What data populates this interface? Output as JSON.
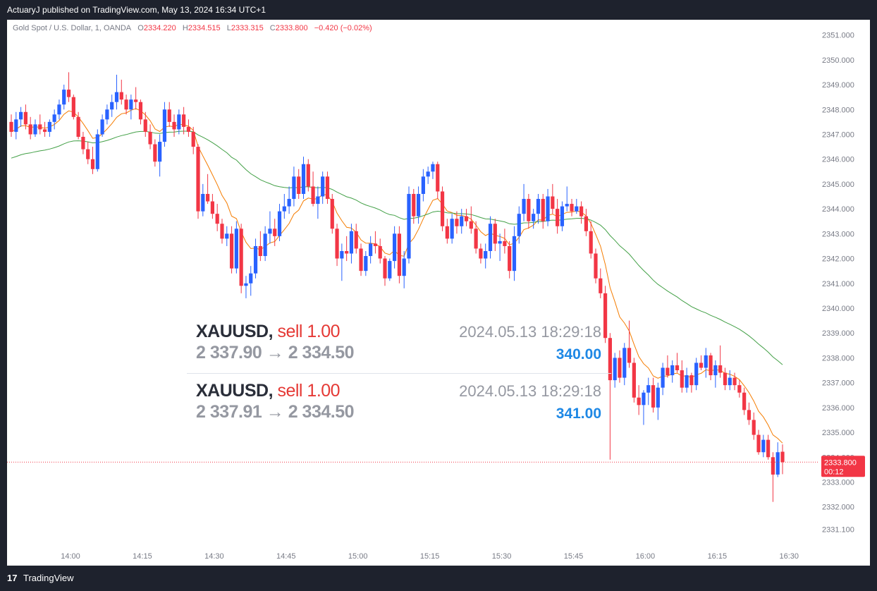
{
  "header": {
    "title": "ActuaryJ published on TradingView.com, May 13, 2024 16:34 UTC+1"
  },
  "legend": {
    "symbol": "Gold Spot / U.S. Dollar, 1, OANDA",
    "o_label": "O",
    "o_value": "2334.220",
    "h_label": "H",
    "h_value": "2334.515",
    "l_label": "L",
    "l_value": "2333.315",
    "c_label": "C",
    "c_value": "2333.800",
    "change": "−0.420 (−0.02%)"
  },
  "trades": [
    {
      "symbol": "XAUUSD,",
      "side": "sell 1.00",
      "prices": "2 337.90 → 2 334.50",
      "time": "2024.05.13 18:29:18",
      "amount": "340.00"
    },
    {
      "symbol": "XAUUSD,",
      "side": "sell 1.00",
      "prices": "2 337.91 → 2 334.50",
      "time": "2024.05.13 18:29:18",
      "amount": "341.00"
    }
  ],
  "footer": {
    "brand": "TradingView",
    "logo_icon": "tradingview-logo-icon"
  },
  "colors": {
    "up": "#2962ff",
    "down": "#f23645",
    "ema_fast": "#f57c00",
    "ema_slow": "#43a047",
    "price_line": "#f23645"
  },
  "chart_data": {
    "type": "candlestick",
    "y_ticks": [
      "2331.100",
      "2332.000",
      "2333.000",
      "2334.000",
      "2335.000",
      "2336.000",
      "2337.000",
      "2338.000",
      "2339.000",
      "2340.000",
      "2341.000",
      "2342.000",
      "2343.000",
      "2344.000",
      "2345.000",
      "2346.000",
      "2347.000",
      "2348.000",
      "2349.000",
      "2350.000",
      "2351.000"
    ],
    "x_ticks": [
      "14:00",
      "14:15",
      "14:30",
      "14:45",
      "15:00",
      "15:15",
      "15:30",
      "15:45",
      "16:00",
      "16:15",
      "16:30"
    ],
    "last_price": "2333.800",
    "countdown": "00:12",
    "ylim": [
      2330.6,
      2351.5
    ],
    "series": [
      {
        "kind": "candles",
        "values": [
          [
            2347.5,
            2347.8,
            2346.9,
            2347.1
          ],
          [
            2347.1,
            2347.9,
            2346.8,
            2347.6
          ],
          [
            2347.6,
            2348.1,
            2347.3,
            2347.9
          ],
          [
            2347.9,
            2348.2,
            2347.2,
            2347.4
          ],
          [
            2347.4,
            2347.7,
            2346.8,
            2347.0
          ],
          [
            2347.0,
            2347.6,
            2346.9,
            2347.4
          ],
          [
            2347.4,
            2347.8,
            2347.0,
            2347.2
          ],
          [
            2347.2,
            2347.5,
            2346.9,
            2347.1
          ],
          [
            2347.1,
            2347.6,
            2346.9,
            2347.5
          ],
          [
            2347.5,
            2348.0,
            2347.2,
            2347.8
          ],
          [
            2347.8,
            2348.4,
            2347.6,
            2348.2
          ],
          [
            2348.2,
            2349.0,
            2348.0,
            2348.8
          ],
          [
            2348.8,
            2349.5,
            2348.3,
            2348.5
          ],
          [
            2348.5,
            2348.6,
            2347.6,
            2347.7
          ],
          [
            2347.7,
            2347.9,
            2346.8,
            2346.9
          ],
          [
            2346.9,
            2347.1,
            2346.2,
            2346.4
          ],
          [
            2346.4,
            2346.7,
            2345.8,
            2346.0
          ],
          [
            2346.0,
            2346.5,
            2345.4,
            2345.6
          ],
          [
            2345.6,
            2347.2,
            2345.5,
            2347.0
          ],
          [
            2347.0,
            2347.8,
            2346.9,
            2347.6
          ],
          [
            2347.6,
            2348.2,
            2347.4,
            2348.0
          ],
          [
            2348.0,
            2348.6,
            2347.7,
            2348.3
          ],
          [
            2348.3,
            2349.4,
            2348.0,
            2348.7
          ],
          [
            2348.7,
            2349.2,
            2348.2,
            2348.4
          ],
          [
            2348.4,
            2348.6,
            2347.8,
            2348.0
          ],
          [
            2348.0,
            2348.6,
            2347.6,
            2348.4
          ],
          [
            2348.4,
            2348.9,
            2348.0,
            2348.3
          ],
          [
            2348.3,
            2348.4,
            2347.4,
            2347.6
          ],
          [
            2347.6,
            2347.9,
            2346.9,
            2347.1
          ],
          [
            2347.1,
            2347.4,
            2346.4,
            2346.6
          ],
          [
            2346.6,
            2346.8,
            2345.7,
            2345.9
          ],
          [
            2345.9,
            2347.0,
            2345.3,
            2346.7
          ],
          [
            2346.7,
            2348.3,
            2346.5,
            2348.0
          ],
          [
            2348.0,
            2348.3,
            2347.3,
            2347.5
          ],
          [
            2347.5,
            2347.8,
            2346.9,
            2347.2
          ],
          [
            2347.2,
            2348.0,
            2347.0,
            2347.8
          ],
          [
            2347.8,
            2348.1,
            2347.0,
            2347.3
          ],
          [
            2347.3,
            2347.6,
            2346.9,
            2347.1
          ],
          [
            2347.1,
            2347.3,
            2346.2,
            2346.5
          ],
          [
            2346.5,
            2346.6,
            2343.6,
            2343.9
          ],
          [
            2343.9,
            2345.0,
            2343.7,
            2344.6
          ],
          [
            2344.6,
            2345.4,
            2344.2,
            2344.3
          ],
          [
            2344.3,
            2344.6,
            2343.6,
            2343.8
          ],
          [
            2343.8,
            2344.2,
            2343.1,
            2343.4
          ],
          [
            2343.4,
            2343.6,
            2342.6,
            2342.8
          ],
          [
            2342.8,
            2343.3,
            2342.5,
            2343.0
          ],
          [
            2343.0,
            2343.3,
            2341.4,
            2341.6
          ],
          [
            2341.6,
            2343.5,
            2341.4,
            2343.2
          ],
          [
            2343.2,
            2343.4,
            2340.6,
            2340.9
          ],
          [
            2340.9,
            2341.3,
            2340.4,
            2341.0
          ],
          [
            2341.0,
            2341.7,
            2340.5,
            2341.4
          ],
          [
            2341.4,
            2342.8,
            2341.2,
            2342.5
          ],
          [
            2342.5,
            2343.1,
            2341.9,
            2342.1
          ],
          [
            2342.1,
            2343.3,
            2341.9,
            2343.0
          ],
          [
            2343.0,
            2343.9,
            2342.6,
            2343.2
          ],
          [
            2343.2,
            2343.6,
            2342.5,
            2342.9
          ],
          [
            2342.9,
            2344.2,
            2342.7,
            2343.9
          ],
          [
            2343.9,
            2344.6,
            2343.6,
            2344.1
          ],
          [
            2344.1,
            2344.9,
            2343.8,
            2344.4
          ],
          [
            2344.4,
            2345.7,
            2344.1,
            2345.3
          ],
          [
            2345.3,
            2345.6,
            2344.4,
            2344.6
          ],
          [
            2344.6,
            2346.1,
            2344.4,
            2345.8
          ],
          [
            2345.8,
            2346.0,
            2344.7,
            2344.9
          ],
          [
            2344.9,
            2345.5,
            2344.1,
            2344.2
          ],
          [
            2344.2,
            2344.9,
            2343.6,
            2344.5
          ],
          [
            2344.5,
            2345.5,
            2344.2,
            2345.3
          ],
          [
            2345.3,
            2345.5,
            2344.2,
            2344.4
          ],
          [
            2344.4,
            2344.6,
            2343.0,
            2343.2
          ],
          [
            2343.2,
            2343.4,
            2341.7,
            2342.0
          ],
          [
            2342.0,
            2342.6,
            2341.1,
            2342.3
          ],
          [
            2342.3,
            2342.9,
            2341.9,
            2342.2
          ],
          [
            2342.2,
            2343.4,
            2341.8,
            2343.1
          ],
          [
            2343.1,
            2343.4,
            2342.2,
            2342.4
          ],
          [
            2342.4,
            2342.6,
            2341.3,
            2341.5
          ],
          [
            2341.5,
            2342.3,
            2341.3,
            2342.1
          ],
          [
            2342.1,
            2342.9,
            2341.8,
            2342.6
          ],
          [
            2342.6,
            2343.1,
            2342.2,
            2342.5
          ],
          [
            2342.5,
            2342.8,
            2341.8,
            2342.0
          ],
          [
            2342.0,
            2342.1,
            2340.9,
            2341.2
          ],
          [
            2341.2,
            2342.0,
            2341.1,
            2341.9
          ],
          [
            2341.9,
            2343.3,
            2341.6,
            2343.0
          ],
          [
            2343.0,
            2343.3,
            2341.0,
            2341.3
          ],
          [
            2341.3,
            2342.3,
            2340.8,
            2342.0
          ],
          [
            2342.0,
            2344.9,
            2341.8,
            2344.6
          ],
          [
            2344.6,
            2344.8,
            2343.4,
            2343.7
          ],
          [
            2343.7,
            2344.9,
            2343.4,
            2344.6
          ],
          [
            2344.6,
            2345.6,
            2344.3,
            2345.3
          ],
          [
            2345.3,
            2345.7,
            2345.0,
            2345.5
          ],
          [
            2345.5,
            2345.9,
            2345.2,
            2345.8
          ],
          [
            2345.8,
            2345.9,
            2344.4,
            2344.7
          ],
          [
            2344.7,
            2344.9,
            2343.1,
            2343.3
          ],
          [
            2343.3,
            2343.6,
            2342.6,
            2342.8
          ],
          [
            2342.8,
            2343.8,
            2342.6,
            2343.6
          ],
          [
            2343.6,
            2343.9,
            2343.0,
            2343.3
          ],
          [
            2343.3,
            2344.0,
            2343.0,
            2343.7
          ],
          [
            2343.7,
            2344.0,
            2343.3,
            2343.5
          ],
          [
            2343.5,
            2344.1,
            2343.0,
            2343.2
          ],
          [
            2343.2,
            2343.5,
            2342.2,
            2342.4
          ],
          [
            2342.4,
            2342.6,
            2341.8,
            2342.0
          ],
          [
            2342.0,
            2342.6,
            2341.6,
            2342.3
          ],
          [
            2342.3,
            2343.7,
            2342.0,
            2343.4
          ],
          [
            2343.4,
            2343.6,
            2342.3,
            2342.6
          ],
          [
            2342.6,
            2343.0,
            2341.9,
            2342.7
          ],
          [
            2342.7,
            2343.2,
            2342.2,
            2342.5
          ],
          [
            2342.5,
            2342.7,
            2341.2,
            2341.5
          ],
          [
            2341.5,
            2343.3,
            2341.1,
            2342.9
          ],
          [
            2342.9,
            2344.1,
            2342.6,
            2343.8
          ],
          [
            2343.8,
            2345.0,
            2343.5,
            2344.4
          ],
          [
            2344.4,
            2344.6,
            2343.2,
            2343.5
          ],
          [
            2343.5,
            2344.0,
            2343.2,
            2343.8
          ],
          [
            2343.8,
            2344.6,
            2343.4,
            2344.4
          ],
          [
            2344.4,
            2344.6,
            2343.2,
            2343.5
          ],
          [
            2343.5,
            2344.8,
            2343.3,
            2344.5
          ],
          [
            2344.5,
            2345.0,
            2343.8,
            2344.0
          ],
          [
            2344.0,
            2344.4,
            2343.0,
            2343.3
          ],
          [
            2343.3,
            2344.3,
            2343.1,
            2344.1
          ],
          [
            2344.1,
            2344.9,
            2343.9,
            2344.2
          ],
          [
            2344.2,
            2344.4,
            2343.7,
            2343.9
          ],
          [
            2343.9,
            2344.4,
            2343.8,
            2344.1
          ],
          [
            2344.1,
            2344.3,
            2343.4,
            2343.7
          ],
          [
            2343.7,
            2344.0,
            2342.9,
            2343.1
          ],
          [
            2343.1,
            2343.5,
            2342.0,
            2342.2
          ],
          [
            2342.2,
            2342.4,
            2341.0,
            2341.2
          ],
          [
            2341.2,
            2341.6,
            2340.4,
            2340.6
          ],
          [
            2340.6,
            2340.9,
            2338.6,
            2338.8
          ],
          [
            2338.8,
            2339.0,
            2333.9,
            2337.1
          ],
          [
            2337.1,
            2338.2,
            2336.8,
            2338.0
          ],
          [
            2338.0,
            2338.3,
            2337.0,
            2337.2
          ],
          [
            2337.2,
            2338.6,
            2336.9,
            2338.4
          ],
          [
            2338.4,
            2339.5,
            2337.6,
            2337.8
          ],
          [
            2337.8,
            2338.0,
            2336.2,
            2336.4
          ],
          [
            2336.4,
            2336.9,
            2335.7,
            2336.1
          ],
          [
            2336.1,
            2336.7,
            2335.3,
            2336.6
          ],
          [
            2336.6,
            2337.2,
            2336.1,
            2336.9
          ],
          [
            2336.9,
            2337.2,
            2335.8,
            2336.0
          ],
          [
            2336.0,
            2337.0,
            2335.5,
            2336.8
          ],
          [
            2336.8,
            2337.8,
            2336.5,
            2337.6
          ],
          [
            2337.6,
            2338.1,
            2337.2,
            2337.3
          ],
          [
            2337.3,
            2337.9,
            2337.0,
            2337.7
          ],
          [
            2337.7,
            2338.2,
            2337.4,
            2337.5
          ],
          [
            2337.5,
            2337.9,
            2336.6,
            2336.8
          ],
          [
            2336.8,
            2337.6,
            2336.6,
            2337.3
          ],
          [
            2337.3,
            2337.4,
            2336.6,
            2336.9
          ],
          [
            2336.9,
            2338.0,
            2336.7,
            2337.8
          ],
          [
            2337.8,
            2338.1,
            2337.5,
            2337.6
          ],
          [
            2337.6,
            2338.4,
            2337.2,
            2338.1
          ],
          [
            2338.1,
            2338.2,
            2337.1,
            2337.3
          ],
          [
            2337.3,
            2337.9,
            2336.8,
            2337.7
          ],
          [
            2337.7,
            2338.5,
            2337.2,
            2337.4
          ],
          [
            2337.4,
            2337.6,
            2336.7,
            2336.9
          ],
          [
            2336.9,
            2337.5,
            2336.7,
            2337.2
          ],
          [
            2337.2,
            2337.4,
            2336.7,
            2336.9
          ],
          [
            2336.9,
            2337.1,
            2336.4,
            2336.6
          ],
          [
            2336.6,
            2336.8,
            2335.7,
            2335.9
          ],
          [
            2335.9,
            2336.2,
            2335.3,
            2335.5
          ],
          [
            2335.5,
            2335.8,
            2334.7,
            2334.9
          ],
          [
            2334.9,
            2335.1,
            2334.1,
            2334.2
          ],
          [
            2334.2,
            2334.9,
            2334.0,
            2334.7
          ],
          [
            2334.7,
            2334.9,
            2333.9,
            2334.0
          ],
          [
            2334.0,
            2334.2,
            2332.2,
            2333.3
          ],
          [
            2333.3,
            2334.6,
            2333.2,
            2334.2
          ],
          [
            2334.22,
            2334.515,
            2333.315,
            2333.8
          ]
        ]
      },
      {
        "kind": "ema",
        "name": "",
        "period": 9,
        "color": "#f57c00"
      },
      {
        "kind": "ema",
        "name": "",
        "period": 50,
        "color": "#43a047",
        "seed": 2346.0
      }
    ]
  }
}
